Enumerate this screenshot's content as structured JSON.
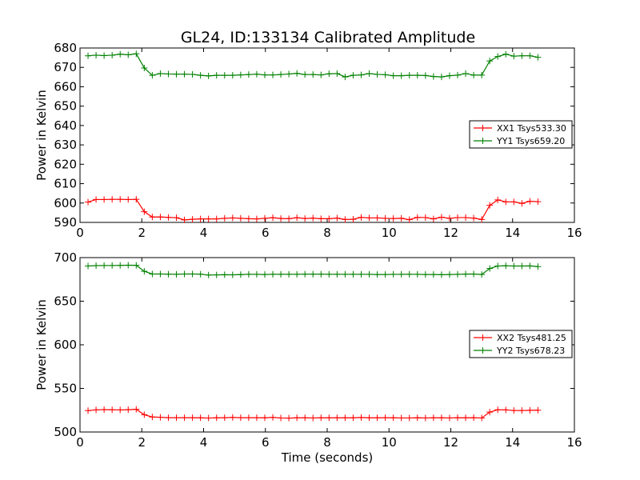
{
  "title": "GL24, ID:133134 Calibrated Amplitude",
  "chart_data": [
    {
      "type": "line",
      "title": "GL24, ID:133134 Calibrated Amplitude",
      "xlabel": "",
      "ylabel": "Power in Kelvin",
      "xlim": [
        0,
        16
      ],
      "ylim": [
        590,
        680
      ],
      "xticks": [
        "0",
        "2",
        "4",
        "6",
        "8",
        "10",
        "12",
        "14",
        "16"
      ],
      "yticks": [
        "590",
        "600",
        "610",
        "620",
        "630",
        "640",
        "650",
        "660",
        "670",
        "680"
      ],
      "legend_position": "right",
      "x": [
        0.26,
        0.52,
        0.78,
        1.04,
        1.3,
        1.56,
        1.82,
        2.08,
        2.34,
        2.6,
        2.86,
        3.12,
        3.38,
        3.64,
        3.9,
        4.16,
        4.42,
        4.68,
        4.94,
        5.2,
        5.46,
        5.72,
        5.98,
        6.24,
        6.5,
        6.76,
        7.02,
        7.28,
        7.54,
        7.8,
        8.06,
        8.32,
        8.58,
        8.84,
        9.1,
        9.36,
        9.62,
        9.88,
        10.14,
        10.4,
        10.66,
        10.92,
        11.18,
        11.44,
        11.7,
        11.96,
        12.22,
        12.48,
        12.74,
        13.0,
        13.26,
        13.52,
        13.78,
        14.04,
        14.3,
        14.56,
        14.82
      ],
      "series": [
        {
          "name": "XX1 Tsys533.30",
          "color": "#ff0000",
          "values": [
            600.5,
            601.8,
            601.8,
            601.9,
            601.9,
            601.8,
            601.9,
            595.5,
            592.8,
            592.8,
            592.6,
            592.4,
            591.3,
            591.6,
            591.8,
            591.8,
            591.8,
            592.1,
            592.3,
            592.1,
            591.9,
            591.8,
            592.1,
            592.4,
            592.0,
            591.9,
            592.4,
            592.0,
            592.2,
            591.9,
            591.9,
            592.2,
            591.5,
            591.6,
            592.6,
            592.3,
            592.3,
            592.1,
            592.0,
            592.1,
            591.4,
            592.6,
            592.5,
            591.8,
            592.7,
            592.1,
            592.5,
            592.5,
            592.2,
            591.5,
            598.8,
            601.6,
            600.6,
            600.6,
            599.8,
            600.9,
            600.7
          ]
        },
        {
          "name": "YY1 Tsys659.20",
          "color": "#008000",
          "values": [
            676.0,
            676.3,
            676.1,
            676.3,
            676.8,
            676.5,
            677.0,
            669.7,
            665.9,
            666.8,
            666.6,
            666.5,
            666.5,
            666.4,
            665.9,
            665.6,
            665.9,
            665.9,
            665.9,
            666.1,
            666.3,
            666.5,
            666.1,
            666.1,
            666.3,
            666.6,
            666.9,
            666.3,
            666.3,
            666.1,
            666.7,
            666.8,
            665.1,
            665.9,
            666.1,
            666.8,
            666.4,
            666.2,
            665.7,
            665.7,
            665.9,
            665.9,
            665.8,
            665.3,
            665.1,
            665.7,
            666.0,
            666.8,
            666.0,
            666.0,
            673.3,
            675.6,
            676.8,
            675.8,
            676.0,
            676.0,
            675.2
          ]
        }
      ]
    },
    {
      "type": "line",
      "title": "",
      "xlabel": "Time (seconds)",
      "ylabel": "Power in Kelvin",
      "xlim": [
        0,
        16
      ],
      "ylim": [
        500,
        700
      ],
      "xticks": [
        "0",
        "2",
        "4",
        "6",
        "8",
        "10",
        "12",
        "14",
        "16"
      ],
      "yticks": [
        "500",
        "550",
        "600",
        "650",
        "700"
      ],
      "legend_position": "right",
      "x": [
        0.26,
        0.52,
        0.78,
        1.04,
        1.3,
        1.56,
        1.82,
        2.08,
        2.34,
        2.6,
        2.86,
        3.12,
        3.38,
        3.64,
        3.9,
        4.16,
        4.42,
        4.68,
        4.94,
        5.2,
        5.46,
        5.72,
        5.98,
        6.24,
        6.5,
        6.76,
        7.02,
        7.28,
        7.54,
        7.8,
        8.06,
        8.32,
        8.58,
        8.84,
        9.1,
        9.36,
        9.62,
        9.88,
        10.14,
        10.4,
        10.66,
        10.92,
        11.18,
        11.44,
        11.7,
        11.96,
        12.22,
        12.48,
        12.74,
        13.0,
        13.26,
        13.52,
        13.78,
        14.04,
        14.3,
        14.56,
        14.82
      ],
      "series": [
        {
          "name": "XX2 Tsys481.25",
          "color": "#ff0000",
          "values": [
            524.5,
            525.4,
            525.7,
            525.5,
            525.3,
            525.6,
            526.0,
            519.8,
            517.2,
            516.9,
            516.4,
            516.4,
            516.4,
            516.4,
            516.3,
            516.0,
            516.3,
            516.4,
            516.7,
            516.4,
            516.4,
            516.4,
            516.3,
            516.7,
            516.1,
            515.9,
            516.3,
            516.3,
            516.1,
            516.3,
            516.3,
            516.3,
            516.3,
            516.3,
            516.6,
            516.3,
            516.3,
            516.4,
            516.3,
            516.1,
            516.1,
            516.3,
            516.1,
            516.3,
            516.3,
            516.1,
            516.4,
            516.3,
            516.4,
            516.1,
            522.8,
            525.5,
            525.4,
            524.6,
            524.6,
            524.9,
            525.0
          ]
        },
        {
          "name": "YY2 Tsys678.23",
          "color": "#008000",
          "values": [
            690.4,
            690.8,
            690.9,
            690.9,
            691.1,
            691.3,
            691.2,
            684.3,
            681.2,
            681.2,
            681.0,
            680.9,
            681.2,
            681.2,
            681.0,
            680.0,
            680.2,
            680.4,
            680.3,
            680.5,
            680.9,
            680.8,
            680.6,
            680.9,
            680.9,
            680.9,
            680.9,
            681.0,
            681.0,
            681.0,
            680.9,
            680.9,
            680.8,
            680.9,
            680.8,
            680.8,
            680.6,
            680.6,
            680.8,
            680.8,
            680.9,
            680.8,
            680.6,
            680.6,
            680.4,
            680.6,
            680.8,
            681.1,
            681.2,
            680.6,
            687.5,
            690.4,
            690.6,
            690.4,
            690.4,
            690.5,
            689.7
          ]
        }
      ]
    }
  ]
}
